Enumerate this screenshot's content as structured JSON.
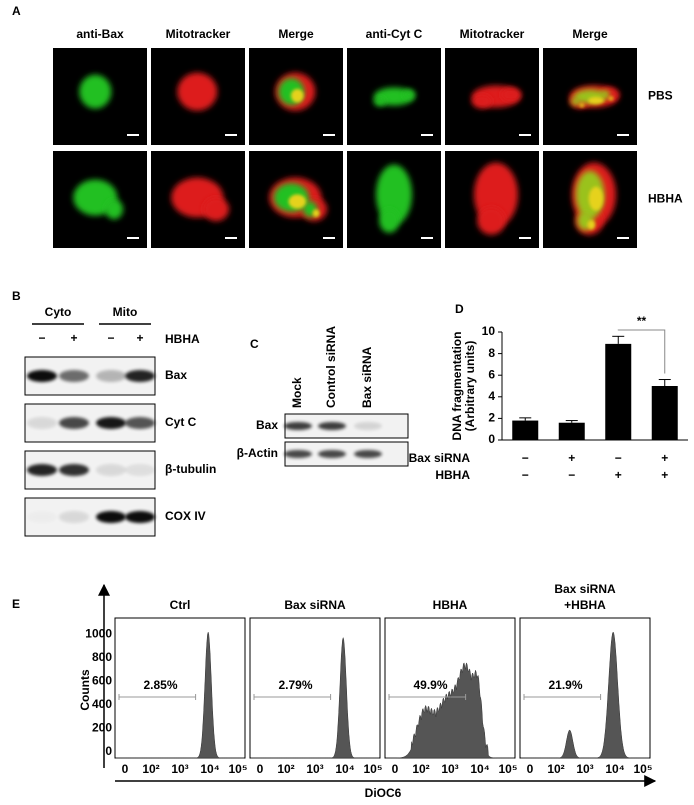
{
  "panel_labels": [
    "A",
    "B",
    "C",
    "D",
    "E"
  ],
  "panel_a": {
    "columns": [
      "anti-Bax",
      "Mitotracker",
      "Merge",
      "anti-Cyt C",
      "Mitotracker",
      "Merge"
    ],
    "rows": [
      "PBS",
      "HBHA"
    ]
  },
  "panel_b": {
    "groups": [
      "Cyto",
      "Mito"
    ],
    "treatment": "HBHA",
    "signs": [
      "−",
      "+",
      "−",
      "+"
    ],
    "proteins": [
      "Bax",
      "Cyt C",
      "β-tubulin",
      "COX IV"
    ]
  },
  "panel_c": {
    "lanes": [
      "Mock",
      "Control siRNA",
      "Bax siRNA"
    ],
    "proteins": [
      "Bax",
      "β-Actin"
    ]
  },
  "chart_data": {
    "type": "bar",
    "y_label": [
      "DNA fragmentation",
      "(Arbitrary units)"
    ],
    "values": [
      1.8,
      1.6,
      8.9,
      5.0
    ],
    "errors": [
      0.25,
      0.2,
      0.7,
      0.6
    ],
    "color": "#000000",
    "ylim": [
      0,
      10
    ],
    "yticks": [
      0,
      2,
      4,
      6,
      8,
      10
    ],
    "annotation": "**",
    "conditions": [
      {
        "name": "Bax siRNA",
        "signs": [
          "−",
          "+",
          "−",
          "+"
        ]
      },
      {
        "name": "HBHA",
        "signs": [
          "−",
          "−",
          "+",
          "+"
        ]
      }
    ]
  },
  "panel_e": {
    "y_label": "Counts",
    "x_label": "DiOC6",
    "yticks": [
      0,
      200,
      400,
      600,
      800,
      1000
    ],
    "xticks": [
      "0",
      "10²",
      "10³",
      "10⁴",
      "10⁵"
    ],
    "samples": [
      {
        "title": [
          "Ctrl"
        ],
        "gate": "2.85%"
      },
      {
        "title": [
          "Bax siRNA"
        ],
        "gate": "2.79%"
      },
      {
        "title": [
          "HBHA"
        ],
        "gate": "49.9%"
      },
      {
        "title": [
          "Bax siRNA",
          "+HBHA"
        ],
        "gate": "21.9%"
      }
    ]
  }
}
